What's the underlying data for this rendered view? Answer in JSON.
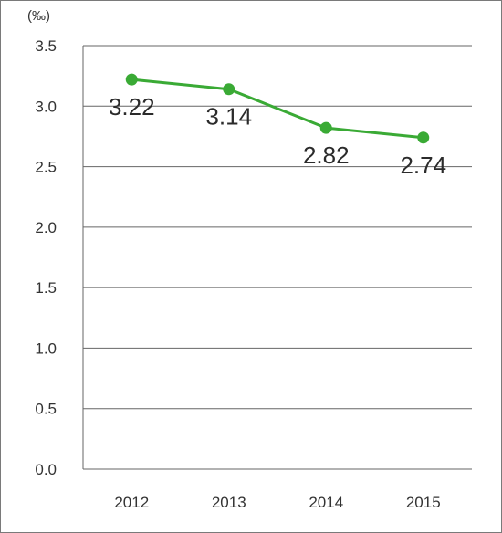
{
  "chart_data": {
    "type": "line",
    "categories": [
      "2012",
      "2013",
      "2014",
      "2015"
    ],
    "values": [
      3.22,
      3.14,
      2.82,
      2.74
    ],
    "data_labels": [
      "3.22",
      "3.14",
      "2.82",
      "2.74"
    ],
    "unit_label": "(‰)",
    "ylim": [
      0,
      3.5
    ],
    "yticks": [
      "0.0",
      "0.5",
      "1.0",
      "1.5",
      "2.0",
      "2.5",
      "3.0",
      "3.5"
    ],
    "grid": "horizontal",
    "line_color": "#3aaa35",
    "marker_color": "#3aaa35",
    "grid_color": "#666666",
    "legend": "none"
  }
}
